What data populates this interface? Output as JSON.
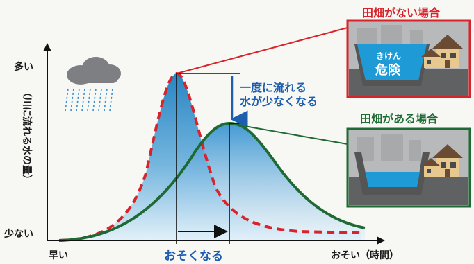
{
  "labels": {
    "y_high": "多い",
    "y_low": "少ない",
    "y_axis_title": "（川に流れる水の量）",
    "x_start": "早い",
    "x_end": "おそい（時間）",
    "delay": "おそくなる",
    "reduction_line1": "一度に流れる",
    "reduction_line2": "水が少なくなる"
  },
  "panels": {
    "without_fields": {
      "title": "田畑がない場合",
      "warning_small": "きけん",
      "warning_big": "危険"
    },
    "with_fields": {
      "title": "田畑がある場合"
    }
  },
  "colors": {
    "without_fields": "#d9232b",
    "with_fields": "#1f6a34",
    "water": "#1e9bd7",
    "arrow": "#1d5fae"
  },
  "icons": [
    "rain-cloud-icon",
    "house-icon"
  ]
}
